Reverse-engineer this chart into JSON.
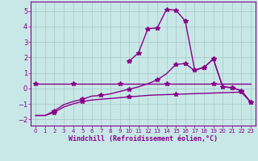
{
  "background_color": "#c8e8e8",
  "grid_color": "#a8c8c8",
  "line_color": "#880088",
  "marker": "*",
  "markersize": 4,
  "linewidth": 1.0,
  "xlabel": "Windchill (Refroidissement éolien,°C)",
  "xlabel_fontsize": 6,
  "tick_fontsize": 6,
  "xlim": [
    -0.5,
    23.5
  ],
  "ylim": [
    -2.4,
    5.6
  ],
  "yticks": [
    -2,
    -1,
    0,
    1,
    2,
    3,
    4,
    5
  ],
  "xticks": [
    0,
    1,
    2,
    3,
    4,
    5,
    6,
    7,
    8,
    9,
    10,
    11,
    12,
    13,
    14,
    15,
    16,
    17,
    18,
    19,
    20,
    21,
    22,
    23
  ],
  "s1_x": [
    0,
    1,
    2,
    3,
    4,
    5,
    6,
    7,
    8,
    9,
    10,
    11,
    12,
    13,
    14,
    15,
    16,
    17,
    18,
    19,
    20,
    21,
    22,
    23
  ],
  "s1_y": [
    0.3,
    0.3,
    0.3,
    0.3,
    0.3,
    0.3,
    0.3,
    0.3,
    0.3,
    0.3,
    0.3,
    0.3,
    0.3,
    0.3,
    0.3,
    0.3,
    0.3,
    0.3,
    0.3,
    0.3,
    0.3,
    0.3,
    0.3,
    0.3
  ],
  "s1_markevery": [
    0,
    4,
    9,
    14,
    19
  ],
  "s2_x": [
    0,
    1,
    2,
    3,
    4,
    5,
    6,
    7,
    8,
    9,
    10,
    11,
    12,
    13,
    14,
    15,
    16,
    17,
    18,
    19,
    20,
    21,
    22,
    23
  ],
  "s2_y": [
    -1.75,
    -1.75,
    -1.55,
    -1.2,
    -1.0,
    -0.85,
    -0.75,
    -0.7,
    -0.65,
    -0.6,
    -0.55,
    -0.5,
    -0.45,
    -0.42,
    -0.4,
    -0.38,
    -0.36,
    -0.34,
    -0.32,
    -0.3,
    -0.28,
    -0.26,
    -0.24,
    -0.9
  ],
  "s2_markevery": [
    2,
    5,
    10,
    15,
    22
  ],
  "s3_x": [
    0,
    1,
    2,
    3,
    4,
    5,
    6,
    7,
    8,
    9,
    10,
    11,
    12,
    13,
    14,
    15,
    16,
    17,
    18,
    19,
    20,
    21,
    22,
    23
  ],
  "s3_y": [
    -1.75,
    -1.75,
    -1.45,
    -1.05,
    -0.85,
    -0.7,
    -0.5,
    -0.45,
    -0.35,
    -0.2,
    -0.05,
    0.1,
    0.3,
    0.55,
    0.95,
    1.55,
    1.6,
    1.15,
    1.35,
    1.9,
    0.1,
    0.05,
    -0.15,
    -0.9
  ],
  "s3_markevery": [
    2,
    5,
    7,
    10,
    13,
    15,
    16,
    18,
    19,
    21,
    23
  ],
  "s4_x": [
    10,
    11,
    12,
    13,
    14,
    15,
    16,
    17,
    18,
    19,
    20,
    21,
    22,
    23
  ],
  "s4_y": [
    1.75,
    2.3,
    3.85,
    3.9,
    5.1,
    5.05,
    4.35,
    1.2,
    1.35,
    1.9,
    0.1,
    0.05,
    -0.15,
    -0.9
  ],
  "s4_markevery": [
    0,
    1,
    2,
    3,
    4,
    5,
    6,
    7,
    8,
    9,
    10,
    11,
    12,
    13
  ]
}
